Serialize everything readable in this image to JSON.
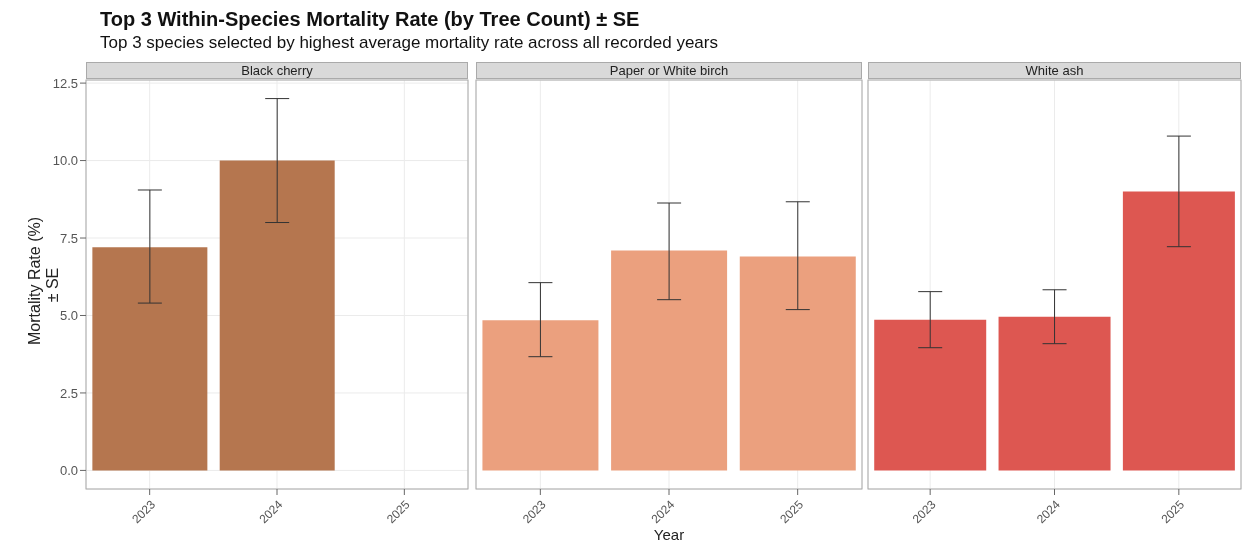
{
  "chart_data": [
    {
      "type": "bar",
      "title": "Black cherry",
      "annotations": [
        "Top 3 Within-Species Mortality Rate (by Tree Count) ± SE",
        "Top 3 species selected by highest average mortality rate across all recorded years"
      ],
      "ylabel": "Mortality Rate (%)\n± SE",
      "categories": [
        "2023",
        "2024",
        "2025"
      ],
      "values": [
        7.2,
        10.0,
        null
      ],
      "errors": [
        [
          5.4,
          9.05
        ],
        [
          8.0,
          12.0
        ],
        null
      ],
      "color": "#b5764f",
      "ylim": [
        -0.6,
        12.6
      ],
      "yticks": [
        {
          "value": 0,
          "label": "0.0"
        },
        2.5,
        {
          "value": 5,
          "label": "5.0"
        },
        7.5,
        {
          "value": 10,
          "label": "10.0"
        },
        12.5
      ],
      "grid": true
    },
    {
      "type": "bar",
      "title": "Paper or White birch",
      "xlabel": "Year",
      "categories": [
        "2023",
        "2024",
        "2025"
      ],
      "values": [
        4.85,
        7.1,
        6.9
      ],
      "errors": [
        [
          3.67,
          6.06
        ],
        [
          5.51,
          8.63
        ],
        [
          5.19,
          8.67
        ]
      ],
      "color": "#eba07e",
      "ylim": [
        -0.6,
        12.6
      ],
      "yticks": [
        0,
        2.5,
        5,
        7.5,
        10,
        12.5
      ],
      "grid": true,
      "tick_labels": "x"
    },
    {
      "type": "bar",
      "title": "White ash",
      "categories": [
        "2023",
        "2024",
        "2025"
      ],
      "values": [
        4.86,
        4.96,
        9.0
      ],
      "errors": [
        [
          3.96,
          5.77
        ],
        [
          4.09,
          5.83
        ],
        [
          7.22,
          10.79
        ]
      ],
      "color": "#dd5751",
      "ylim": [
        -0.6,
        12.6
      ],
      "yticks": [
        0,
        2.5,
        5,
        7.5,
        10,
        12.5
      ],
      "grid": true,
      "tick_labels": "x"
    }
  ]
}
